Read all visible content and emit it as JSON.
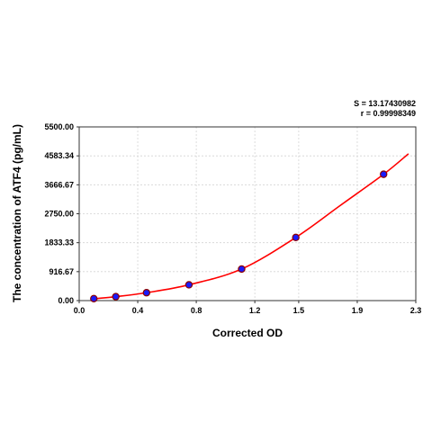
{
  "chart_data": {
    "type": "scatter",
    "xlabel": "Corrected OD",
    "ylabel": "The concentration of ATF4 (pg/mL)",
    "annotations": {
      "s_value": "S = 13.17430982",
      "r_value": "r = 0.99998349"
    },
    "xlim": [
      0.0,
      2.3
    ],
    "ylim": [
      0.0,
      5500.0
    ],
    "x_ticks": [
      0.0,
      0.4,
      0.8,
      1.2,
      1.5,
      1.9,
      2.3
    ],
    "x_tick_labels": [
      "0.0",
      "0.4",
      "0.8",
      "1.2",
      "1.5",
      "1.9",
      "2.3"
    ],
    "y_ticks": [
      0.0,
      916.67,
      1833.33,
      2750.0,
      3666.67,
      4583.34,
      5500.0
    ],
    "y_tick_labels": [
      "0.00",
      "916.67",
      "1833.33",
      "2750.00",
      "3666.67",
      "4583.34",
      "5500.00"
    ],
    "grid": true,
    "series": [
      {
        "type": "scatter",
        "color": "#1a1aff",
        "edge_color": "#8b0000",
        "x": [
          0.1,
          0.25,
          0.46,
          0.75,
          1.11,
          1.48,
          2.08
        ],
        "y": [
          62.5,
          125,
          250,
          500,
          1000,
          2000,
          4000
        ]
      },
      {
        "type": "line",
        "color": "#ff0000",
        "x": [
          0.08,
          0.25,
          0.46,
          0.75,
          1.11,
          1.48,
          1.78,
          2.08,
          2.25
        ],
        "y": [
          50,
          125,
          250,
          500,
          1000,
          2000,
          3000,
          4000,
          4650
        ]
      }
    ]
  }
}
